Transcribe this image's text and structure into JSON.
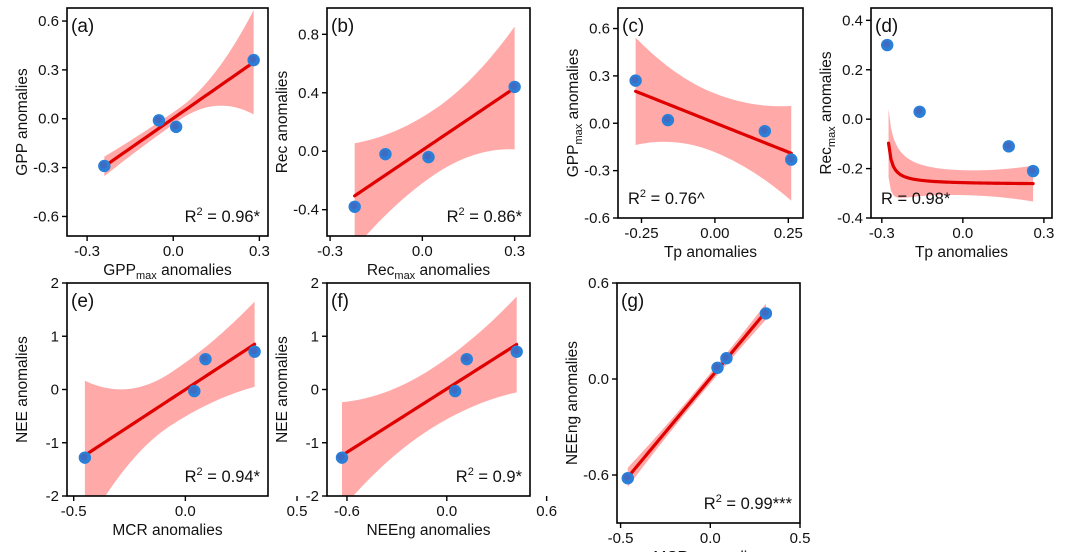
{
  "figure": {
    "colors": {
      "band": "#ff9a9a",
      "line": "#e00000",
      "point": "#2a7fd8",
      "point_core": "#4a62b8",
      "frame": "#000000"
    }
  },
  "chart_data": [
    {
      "id": "a",
      "panel_label": "(a)",
      "type": "scatter",
      "xlabel_main": "GPP",
      "xlabel_sub": "max",
      "xlabel_tail": " anomalies",
      "ylabel_main": "GPP",
      "ylabel_sub": "",
      "ylabel_tail": " anomalies",
      "xlim": [
        -0.37,
        0.33
      ],
      "ylim": [
        -0.72,
        0.68
      ],
      "xticks": [
        -0.3,
        0.0,
        0.3
      ],
      "xtick_labels": [
        "-0.3",
        "0.0",
        "0.3"
      ],
      "yticks": [
        -0.6,
        -0.3,
        0.0,
        0.3,
        0.6
      ],
      "ytick_labels": [
        "-0.6",
        "-0.3",
        "0.0",
        "0.3",
        "0.6"
      ],
      "points": [
        [
          -0.24,
          -0.29
        ],
        [
          -0.05,
          -0.01
        ],
        [
          0.01,
          -0.05
        ],
        [
          0.28,
          0.36
        ]
      ],
      "fit": "linear",
      "fit_x": [
        -0.24,
        0.28
      ],
      "ci_halfwidth": [
        0.06,
        0.32
      ],
      "stat_prefix": "R",
      "stat_sup": "2",
      "stat_value": " = 0.96*",
      "stat_pos": "bottom-right"
    },
    {
      "id": "b",
      "panel_label": "(b)",
      "type": "scatter",
      "xlabel_main": "Rec",
      "xlabel_sub": "max",
      "xlabel_tail": " anomalies",
      "ylabel_main": "Rec anomalies",
      "ylabel_sub": "",
      "ylabel_tail": "",
      "xlim": [
        -0.31,
        0.35
      ],
      "ylim": [
        -0.58,
        0.98
      ],
      "xticks": [
        -0.3,
        0.0,
        0.3
      ],
      "xtick_labels": [
        "-0.3",
        "0.0",
        "0.3"
      ],
      "yticks": [
        -0.4,
        0.0,
        0.4,
        0.8
      ],
      "ytick_labels": [
        "-0.4",
        "0.0",
        "0.4",
        "0.8"
      ],
      "points": [
        [
          -0.22,
          -0.38
        ],
        [
          -0.12,
          -0.02
        ],
        [
          0.02,
          -0.04
        ],
        [
          0.3,
          0.44
        ]
      ],
      "fit": "linear",
      "fit_x": [
        -0.22,
        0.3
      ],
      "ci_halfwidth": [
        0.36,
        0.42
      ],
      "stat_prefix": "R",
      "stat_sup": "2",
      "stat_value": " = 0.86*",
      "stat_pos": "bottom-right"
    },
    {
      "id": "c",
      "panel_label": "(c)",
      "type": "scatter",
      "xlabel_main": "Tp anomalies",
      "xlabel_sub": "",
      "xlabel_tail": "",
      "ylabel_main": "GPP",
      "ylabel_sub": "max",
      "ylabel_tail": " anomalies",
      "xlim": [
        -0.33,
        0.3
      ],
      "ylim": [
        -0.6,
        0.73
      ],
      "xticks": [
        -0.25,
        0.0,
        0.25
      ],
      "xtick_labels": [
        "-0.25",
        "0.00",
        "0.25"
      ],
      "yticks": [
        -0.6,
        -0.3,
        0.0,
        0.3,
        0.6
      ],
      "ytick_labels": [
        "-0.6",
        "-0.3",
        "0.0",
        "0.3",
        "0.6"
      ],
      "points": [
        [
          -0.27,
          0.27
        ],
        [
          -0.16,
          0.02
        ],
        [
          0.17,
          -0.05
        ],
        [
          0.26,
          -0.23
        ]
      ],
      "fit": "linear",
      "fit_x": [
        -0.27,
        0.26
      ],
      "ci_halfwidth": [
        0.34,
        0.3
      ],
      "stat_prefix": "R",
      "stat_sup": "2",
      "stat_value": " = 0.76^",
      "stat_pos": "bottom-left"
    },
    {
      "id": "d",
      "panel_label": "(d)",
      "type": "scatter",
      "xlabel_main": "Tp anomalies",
      "xlabel_sub": "",
      "xlabel_tail": "",
      "ylabel_main": "Rec",
      "ylabel_sub": "max",
      "ylabel_tail": " anomalies",
      "xlim": [
        -0.34,
        0.33
      ],
      "ylim": [
        -0.4,
        0.45
      ],
      "xticks": [
        -0.3,
        0.0,
        0.3
      ],
      "xtick_labels": [
        "-0.3",
        "0.0",
        "0.3"
      ],
      "yticks": [
        -0.4,
        -0.2,
        0.0,
        0.2,
        0.4
      ],
      "ytick_labels": [
        "-0.4",
        "-0.2",
        "0.0",
        "0.2",
        "0.4"
      ],
      "points": [
        [
          -0.28,
          0.3
        ],
        [
          -0.16,
          0.03
        ],
        [
          0.17,
          -0.11
        ],
        [
          0.26,
          -0.21
        ]
      ],
      "fit": "hyperbolic",
      "fit_x": [
        -0.275,
        0.26
      ],
      "stat_prefix": "R",
      "stat_sup": "",
      "stat_value": " = 0.98*",
      "stat_pos": "bottom-left"
    },
    {
      "id": "e",
      "panel_label": "(e)",
      "type": "scatter",
      "xlabel_main": "MCR anomalies",
      "xlabel_sub": "",
      "xlabel_tail": "",
      "ylabel_main": "NEE anomalies",
      "ylabel_sub": "",
      "ylabel_tail": "",
      "xlim": [
        -0.53,
        0.37
      ],
      "ylim": [
        -2.0,
        2.0
      ],
      "xticks": [
        -0.5,
        0.0,
        0.5
      ],
      "xtick_labels": [
        "-0.5",
        "0.0",
        "0.5"
      ],
      "yticks": [
        -2,
        -1,
        0,
        1,
        2
      ],
      "ytick_labels": [
        "-2",
        "-1",
        "0",
        "1",
        "2"
      ],
      "points": [
        [
          -0.45,
          -1.28
        ],
        [
          0.04,
          -0.03
        ],
        [
          0.09,
          0.57
        ],
        [
          0.31,
          0.71
        ]
      ],
      "fit": "linear",
      "fit_x": [
        -0.45,
        0.31
      ],
      "ci_halfwidth": [
        1.4,
        0.8
      ],
      "stat_prefix": "R",
      "stat_sup": "2",
      "stat_value": " = 0.94*",
      "stat_pos": "bottom-right"
    },
    {
      "id": "f",
      "panel_label": "(f)",
      "type": "scatter",
      "xlabel_main": "NEEng anomalies",
      "xlabel_sub": "",
      "xlabel_tail": "",
      "ylabel_main": "NEE anomalies",
      "ylabel_sub": "",
      "ylabel_tail": "",
      "xlim": [
        -0.72,
        0.5
      ],
      "ylim": [
        -2.0,
        2.0
      ],
      "xticks": [
        -0.6,
        0.0,
        0.6
      ],
      "xtick_labels": [
        "-0.6",
        "0.0",
        "0.6"
      ],
      "yticks": [
        -2,
        -1,
        0,
        1,
        2
      ],
      "ytick_labels": [
        "-2",
        "-1",
        "0",
        "1",
        "2"
      ],
      "points": [
        [
          -0.63,
          -1.28
        ],
        [
          0.05,
          -0.03
        ],
        [
          0.12,
          0.57
        ],
        [
          0.42,
          0.71
        ]
      ],
      "fit": "linear",
      "fit_x": [
        -0.63,
        0.42
      ],
      "ci_halfwidth": [
        1.0,
        0.9
      ],
      "stat_prefix": "R",
      "stat_sup": "2",
      "stat_value": " = 0.9*",
      "stat_pos": "bottom-right"
    },
    {
      "id": "g",
      "panel_label": "(g)",
      "type": "scatter",
      "xlabel_main": "MCR anomalies",
      "xlabel_sub": "",
      "xlabel_tail": "",
      "ylabel_main": "NEEng anomalies",
      "ylabel_sub": "",
      "ylabel_tail": "",
      "xlim": [
        -0.52,
        0.5
      ],
      "ylim": [
        -0.9,
        0.6
      ],
      "xticks": [
        -0.5,
        0.0,
        0.5
      ],
      "xtick_labels": [
        "-0.5",
        "0.0",
        "0.5"
      ],
      "yticks": [
        -0.6,
        0.0,
        0.6
      ],
      "ytick_labels": [
        "-0.6",
        "0.0",
        "0.6"
      ],
      "points": [
        [
          -0.46,
          -0.62
        ],
        [
          0.04,
          0.07
        ],
        [
          0.09,
          0.13
        ],
        [
          0.31,
          0.41
        ]
      ],
      "fit": "linear",
      "fit_x": [
        -0.46,
        0.31
      ],
      "ci_halfwidth": [
        0.06,
        0.05
      ],
      "stat_prefix": "R",
      "stat_sup": "2",
      "stat_value": " = 0.99***",
      "stat_pos": "bottom-right"
    }
  ]
}
